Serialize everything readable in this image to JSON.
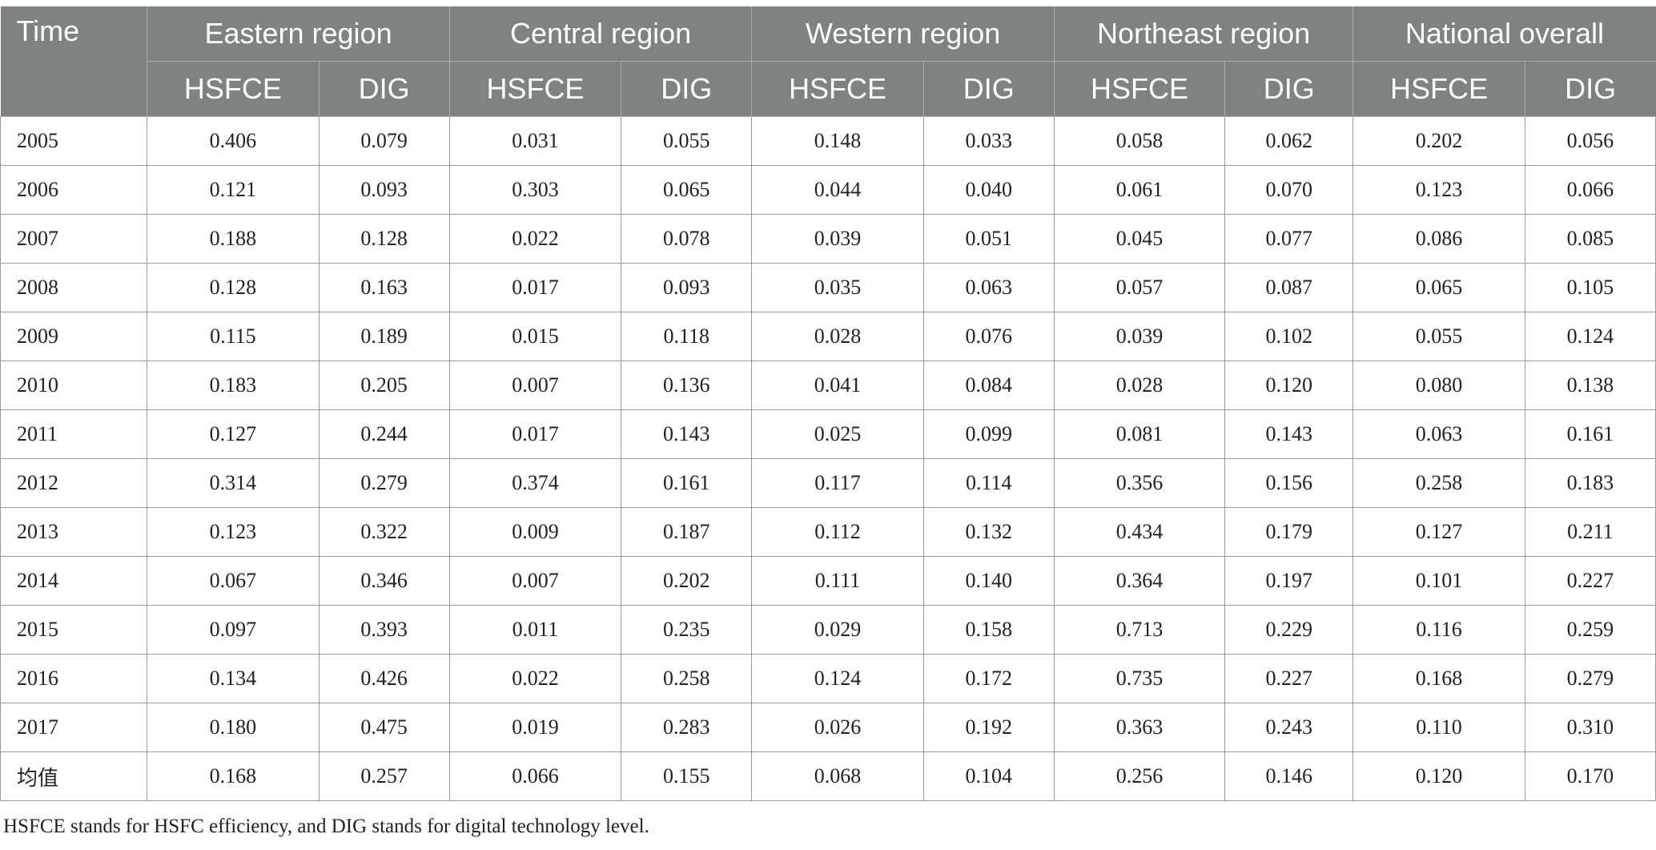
{
  "table": {
    "time_header": "Time",
    "regions": [
      "Eastern region",
      "Central region",
      "Western region",
      "Northeast region",
      "National overall"
    ],
    "sub_headers": [
      "HSFCE",
      "DIG"
    ],
    "rows": [
      {
        "time": "2005",
        "values": [
          "0.406",
          "0.079",
          "0.031",
          "0.055",
          "0.148",
          "0.033",
          "0.058",
          "0.062",
          "0.202",
          "0.056"
        ]
      },
      {
        "time": "2006",
        "values": [
          "0.121",
          "0.093",
          "0.303",
          "0.065",
          "0.044",
          "0.040",
          "0.061",
          "0.070",
          "0.123",
          "0.066"
        ]
      },
      {
        "time": "2007",
        "values": [
          "0.188",
          "0.128",
          "0.022",
          "0.078",
          "0.039",
          "0.051",
          "0.045",
          "0.077",
          "0.086",
          "0.085"
        ]
      },
      {
        "time": "2008",
        "values": [
          "0.128",
          "0.163",
          "0.017",
          "0.093",
          "0.035",
          "0.063",
          "0.057",
          "0.087",
          "0.065",
          "0.105"
        ]
      },
      {
        "time": "2009",
        "values": [
          "0.115",
          "0.189",
          "0.015",
          "0.118",
          "0.028",
          "0.076",
          "0.039",
          "0.102",
          "0.055",
          "0.124"
        ]
      },
      {
        "time": "2010",
        "values": [
          "0.183",
          "0.205",
          "0.007",
          "0.136",
          "0.041",
          "0.084",
          "0.028",
          "0.120",
          "0.080",
          "0.138"
        ]
      },
      {
        "time": "2011",
        "values": [
          "0.127",
          "0.244",
          "0.017",
          "0.143",
          "0.025",
          "0.099",
          "0.081",
          "0.143",
          "0.063",
          "0.161"
        ]
      },
      {
        "time": "2012",
        "values": [
          "0.314",
          "0.279",
          "0.374",
          "0.161",
          "0.117",
          "0.114",
          "0.356",
          "0.156",
          "0.258",
          "0.183"
        ]
      },
      {
        "time": "2013",
        "values": [
          "0.123",
          "0.322",
          "0.009",
          "0.187",
          "0.112",
          "0.132",
          "0.434",
          "0.179",
          "0.127",
          "0.211"
        ]
      },
      {
        "time": "2014",
        "values": [
          "0.067",
          "0.346",
          "0.007",
          "0.202",
          "0.111",
          "0.140",
          "0.364",
          "0.197",
          "0.101",
          "0.227"
        ]
      },
      {
        "time": "2015",
        "values": [
          "0.097",
          "0.393",
          "0.011",
          "0.235",
          "0.029",
          "0.158",
          "0.713",
          "0.229",
          "0.116",
          "0.259"
        ]
      },
      {
        "time": "2016",
        "values": [
          "0.134",
          "0.426",
          "0.022",
          "0.258",
          "0.124",
          "0.172",
          "0.735",
          "0.227",
          "0.168",
          "0.279"
        ]
      },
      {
        "time": "2017",
        "values": [
          "0.180",
          "0.475",
          "0.019",
          "0.283",
          "0.026",
          "0.192",
          "0.363",
          "0.243",
          "0.110",
          "0.310"
        ]
      },
      {
        "time": "均值",
        "values": [
          "0.168",
          "0.257",
          "0.066",
          "0.155",
          "0.068",
          "0.104",
          "0.256",
          "0.146",
          "0.120",
          "0.170"
        ]
      }
    ]
  },
  "footnote": "HSFCE stands for HSFC efficiency, and DIG stands for digital technology level.",
  "colors": {
    "header_bg": "#7f8280",
    "header_text": "#ffffff",
    "border": "#9a9a9a"
  }
}
